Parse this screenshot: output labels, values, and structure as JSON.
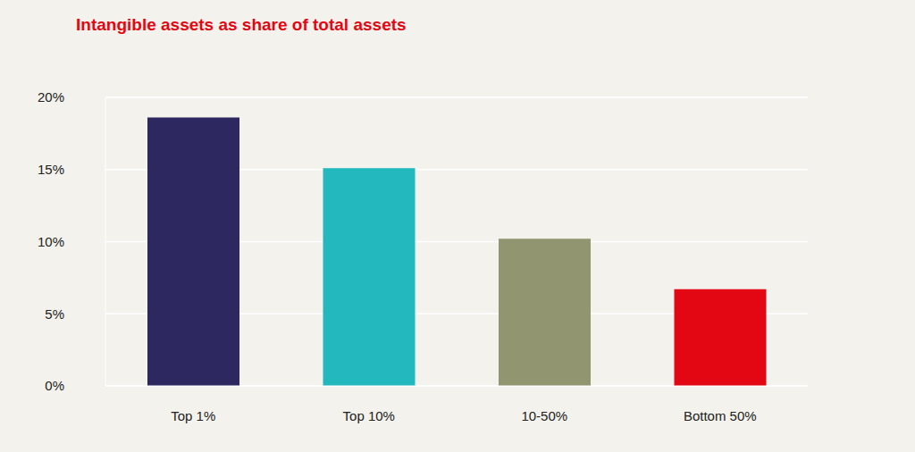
{
  "chart_data": {
    "type": "bar",
    "title": "Intangible assets as share of total assets",
    "categories": [
      "Top 1%",
      "Top 10%",
      "10-50%",
      "Bottom 50%"
    ],
    "values": [
      18.6,
      15.1,
      10.2,
      6.7
    ],
    "colors": [
      "#2d2960",
      "#22b8bd",
      "#929670",
      "#e30613"
    ],
    "ylim": [
      0,
      20
    ],
    "yticks": [
      {
        "value": 0,
        "label": "0%"
      },
      {
        "value": 5,
        "label": "5%"
      },
      {
        "value": 10,
        "label": "10%"
      },
      {
        "value": 15,
        "label": "15%"
      },
      {
        "value": 20,
        "label": "20%"
      }
    ],
    "grid": true
  }
}
